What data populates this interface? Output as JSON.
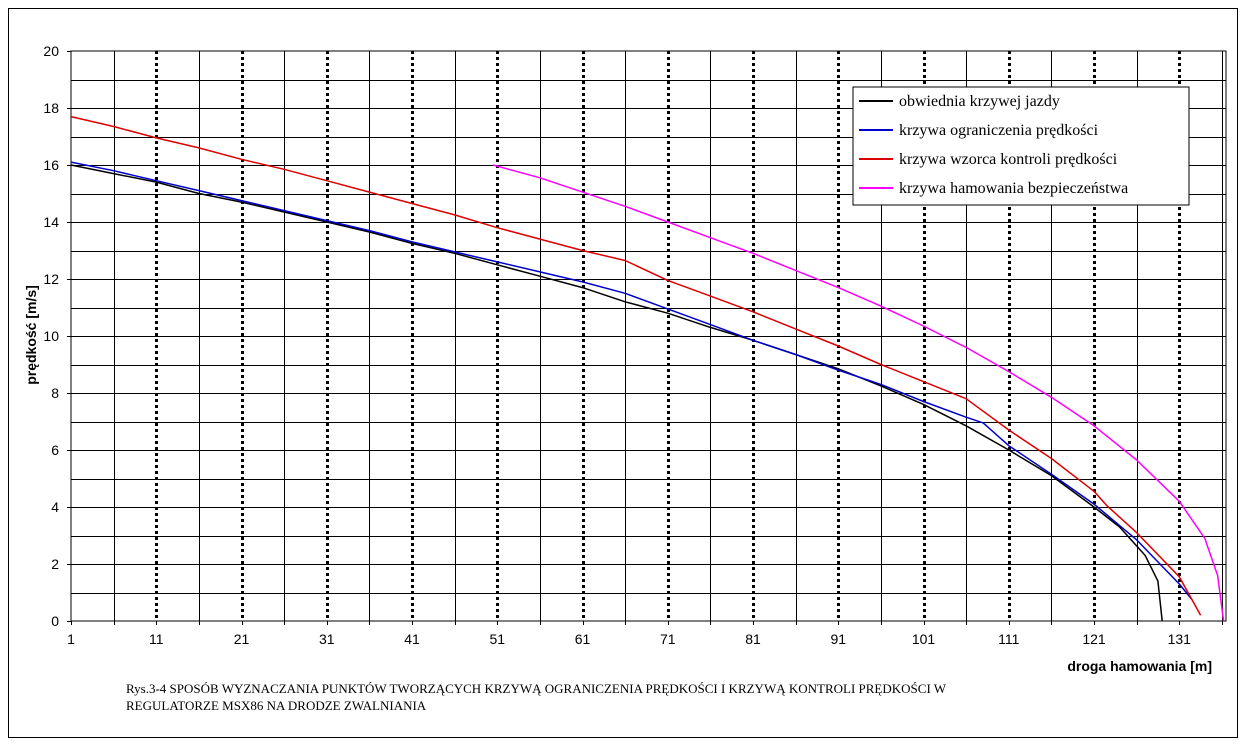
{
  "chart_data": {
    "type": "line",
    "xlabel": "droga hamowania [m]",
    "ylabel": "prędkość [m/s]",
    "xlim": [
      1,
      137
    ],
    "ylim": [
      0,
      20
    ],
    "x_ticks": [
      "1",
      "11",
      "21",
      "31",
      "41",
      "51",
      "61",
      "71",
      "81",
      "91",
      "101",
      "111",
      "121",
      "131"
    ],
    "y_ticks": [
      "0",
      "2",
      "4",
      "6",
      "8",
      "10",
      "12",
      "14",
      "16",
      "18",
      "20"
    ],
    "grid": true,
    "legend_position": "top-right",
    "series": [
      {
        "name": "obwiednia krzywej jazdy",
        "color": "#000000",
        "points": [
          [
            1,
            16.0
          ],
          [
            6,
            15.7
          ],
          [
            11,
            15.4
          ],
          [
            16,
            15.0
          ],
          [
            21,
            14.7
          ],
          [
            26,
            14.35
          ],
          [
            31,
            14.0
          ],
          [
            36,
            13.65
          ],
          [
            41,
            13.25
          ],
          [
            46,
            12.9
          ],
          [
            51,
            12.5
          ],
          [
            56,
            12.1
          ],
          [
            61,
            11.7
          ],
          [
            66,
            11.2
          ],
          [
            71,
            10.8
          ],
          [
            76,
            10.3
          ],
          [
            81,
            9.85
          ],
          [
            86,
            9.35
          ],
          [
            91,
            8.85
          ],
          [
            96,
            8.25
          ],
          [
            101,
            7.6
          ],
          [
            106,
            6.85
          ],
          [
            111,
            6.0
          ],
          [
            116,
            5.1
          ],
          [
            121,
            4.0
          ],
          [
            124,
            3.3
          ],
          [
            127,
            2.3
          ],
          [
            128.5,
            1.4
          ],
          [
            129,
            0
          ]
        ]
      },
      {
        "name": "krzywa ograniczenia prędkości",
        "color": "#0000cc",
        "points": [
          [
            1,
            16.1
          ],
          [
            6,
            15.8
          ],
          [
            11,
            15.45
          ],
          [
            16,
            15.1
          ],
          [
            21,
            14.75
          ],
          [
            26,
            14.4
          ],
          [
            31,
            14.05
          ],
          [
            36,
            13.7
          ],
          [
            41,
            13.3
          ],
          [
            46,
            12.95
          ],
          [
            51,
            12.6
          ],
          [
            56,
            12.25
          ],
          [
            61,
            11.9
          ],
          [
            66,
            11.5
          ],
          [
            71,
            10.95
          ],
          [
            76,
            10.4
          ],
          [
            81,
            9.85
          ],
          [
            86,
            9.35
          ],
          [
            91,
            8.8
          ],
          [
            96,
            8.3
          ],
          [
            101,
            7.7
          ],
          [
            106,
            7.15
          ],
          [
            108,
            6.95
          ],
          [
            111,
            6.15
          ],
          [
            116,
            5.15
          ],
          [
            121,
            4.1
          ],
          [
            126,
            2.85
          ],
          [
            131,
            1.3
          ],
          [
            132.5,
            0.75
          ]
        ]
      },
      {
        "name": "krzywa wzorca kontroli prędkości",
        "color": "#dd0000",
        "points": [
          [
            1,
            17.7
          ],
          [
            6,
            17.35
          ],
          [
            11,
            16.95
          ],
          [
            16,
            16.6
          ],
          [
            21,
            16.2
          ],
          [
            26,
            15.85
          ],
          [
            31,
            15.45
          ],
          [
            36,
            15.05
          ],
          [
            41,
            14.65
          ],
          [
            46,
            14.25
          ],
          [
            51,
            13.8
          ],
          [
            56,
            13.4
          ],
          [
            61,
            13.0
          ],
          [
            66,
            12.65
          ],
          [
            71,
            11.95
          ],
          [
            76,
            11.4
          ],
          [
            81,
            10.85
          ],
          [
            86,
            10.25
          ],
          [
            91,
            9.65
          ],
          [
            96,
            9.0
          ],
          [
            101,
            8.4
          ],
          [
            106,
            7.8
          ],
          [
            111,
            6.7
          ],
          [
            116,
            5.7
          ],
          [
            121,
            4.55
          ],
          [
            122.5,
            4.05
          ],
          [
            126,
            3.1
          ],
          [
            131,
            1.55
          ],
          [
            133.5,
            0.2
          ]
        ]
      },
      {
        "name": "krzywa hamowania bezpieczeństwa",
        "color": "#ff00ff",
        "points": [
          [
            50.5,
            16.0
          ],
          [
            56,
            15.55
          ],
          [
            61,
            15.05
          ],
          [
            66,
            14.55
          ],
          [
            71,
            14.0
          ],
          [
            76,
            13.45
          ],
          [
            81,
            12.9
          ],
          [
            86,
            12.3
          ],
          [
            91,
            11.7
          ],
          [
            96,
            11.05
          ],
          [
            101,
            10.35
          ],
          [
            106,
            9.6
          ],
          [
            111,
            8.75
          ],
          [
            116,
            7.85
          ],
          [
            121,
            6.85
          ],
          [
            126,
            5.65
          ],
          [
            131,
            4.2
          ],
          [
            134,
            2.9
          ],
          [
            135.5,
            1.6
          ],
          [
            136.2,
            0
          ]
        ]
      }
    ]
  },
  "caption": {
    "line1": "Rys.3-4 SPOSÓB WYZNACZANIA PUNKTÓW TWORZĄCYCH KRZYWĄ OGRANICZENIA PRĘDKOŚCI I KRZYWĄ KONTROLI PRĘDKOŚCI W",
    "line2": "REGULATORZE MSX86 NA DRODZE ZWALNIANIA"
  }
}
